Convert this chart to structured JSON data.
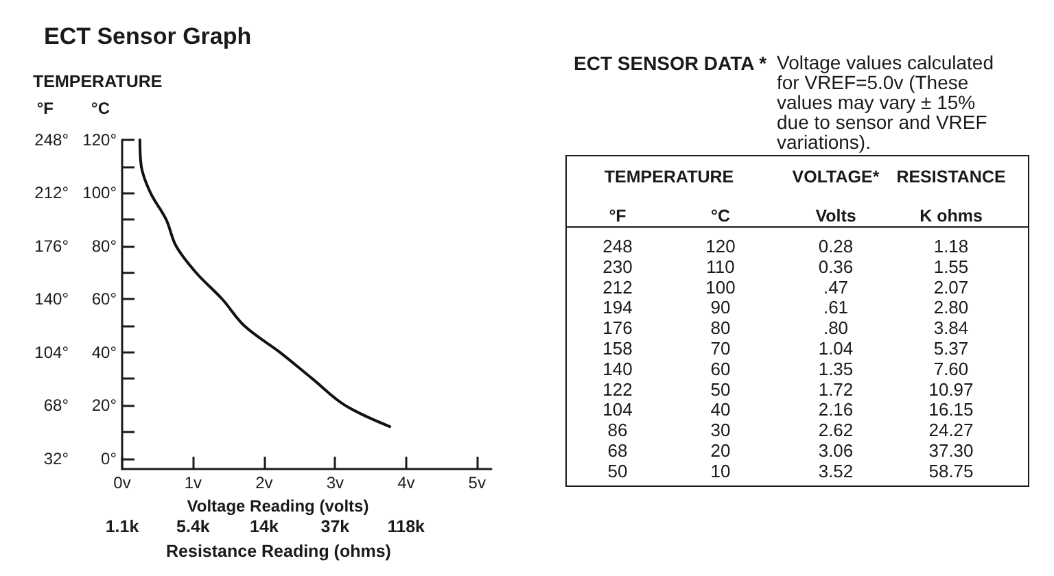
{
  "chart_data": [
    {
      "type": "line",
      "title": "ECT Sensor Graph",
      "annotations": [
        "TEMPERATURE",
        "1.1k",
        "5.4k",
        "14k",
        "37k",
        "118k",
        "Resistance Reading (ohms)"
      ],
      "xlabel": "Voltage Reading (volts)",
      "ylabel": "°C",
      "y2label": "°F",
      "x": [
        0.25,
        0.27,
        0.4,
        0.62,
        0.76,
        1.04,
        1.41,
        1.72,
        2.22,
        2.68,
        3.14,
        3.77
      ],
      "series": [
        {
          "color": "#111111",
          "values": [
            120,
            110,
            100,
            90,
            80,
            70,
            60,
            50,
            40,
            30,
            20,
            12
          ]
        }
      ],
      "xlim": [
        0,
        5.2
      ],
      "xticks": [
        {
          "value": 0,
          "label": "0v"
        },
        {
          "value": 1,
          "label": "1v"
        },
        {
          "value": 2,
          "label": "2v"
        },
        {
          "value": 3,
          "label": "3v"
        },
        {
          "value": 4,
          "label": "4v"
        },
        {
          "value": 5,
          "label": "5v"
        }
      ],
      "ylim": [
        -4,
        120
      ],
      "yticks": [
        {
          "value": 0,
          "label": "0°"
        },
        {
          "value": 10,
          "label": null
        },
        {
          "value": 20,
          "label": "20°"
        },
        {
          "value": 30,
          "label": null
        },
        {
          "value": 40,
          "label": "40°"
        },
        {
          "value": 50,
          "label": null
        },
        {
          "value": 60,
          "label": "60°"
        },
        {
          "value": 70,
          "label": null
        },
        {
          "value": 80,
          "label": "80°"
        },
        {
          "value": 90,
          "label": null
        },
        {
          "value": 100,
          "label": "100°"
        },
        {
          "value": 110,
          "label": null
        },
        {
          "value": 120,
          "label": "120°"
        }
      ],
      "y2lim": [
        24.8,
        248
      ],
      "y2ticks": [
        {
          "value": 32,
          "label": "32°"
        },
        {
          "value": 68,
          "label": "68°"
        },
        {
          "value": 104,
          "label": "104°"
        },
        {
          "value": 140,
          "label": "140°"
        },
        {
          "value": 176,
          "label": "176°"
        },
        {
          "value": 212,
          "label": "212°"
        },
        {
          "value": 248,
          "label": "248°"
        }
      ],
      "marker": "none",
      "line_style": "solid"
    },
    {
      "type": "heatmap",
      "title": "ECT SENSOR DATA *",
      "annotations": [
        "Voltage values calculated for VREF=5.0v (These values may vary ± 15% due to sensor and VREF variations).",
        "TEMPERATURE",
        "VOLTAGE*",
        "RESISTANCE"
      ],
      "ylabel": "°F",
      "categories": [
        "°C",
        "Volts",
        "K ohms"
      ],
      "y_categories": [
        "248",
        "230",
        "212",
        "194",
        "176",
        "158",
        "140",
        "122",
        "104",
        "86",
        "68",
        "50"
      ],
      "cells": [
        [
          120,
          0.28,
          1.18
        ],
        [
          110,
          0.36,
          1.55
        ],
        [
          100,
          0.47,
          2.07
        ],
        [
          90,
          0.61,
          2.8
        ],
        [
          80,
          0.8,
          3.84
        ],
        [
          70,
          1.04,
          5.37
        ],
        [
          60,
          1.35,
          7.6
        ],
        [
          50,
          1.72,
          10.97
        ],
        [
          40,
          2.16,
          16.15
        ],
        [
          30,
          2.62,
          24.27
        ],
        [
          20,
          3.06,
          37.3
        ],
        [
          10,
          3.52,
          58.75
        ]
      ],
      "cell_labels": [
        [
          "120",
          "0.28",
          "1.18"
        ],
        [
          "110",
          "0.36",
          "1.55"
        ],
        [
          "100",
          ".47",
          "2.07"
        ],
        [
          "90",
          ".61",
          "2.80"
        ],
        [
          "80",
          ".80",
          "3.84"
        ],
        [
          "70",
          "1.04",
          "5.37"
        ],
        [
          "60",
          "1.35",
          "7.60"
        ],
        [
          "50",
          "1.72",
          "10.97"
        ],
        [
          "40",
          "2.16",
          "16.15"
        ],
        [
          "30",
          "2.62",
          "24.27"
        ],
        [
          "20",
          "3.06",
          "37.30"
        ],
        [
          "10",
          "3.52",
          "58.75"
        ]
      ]
    }
  ]
}
